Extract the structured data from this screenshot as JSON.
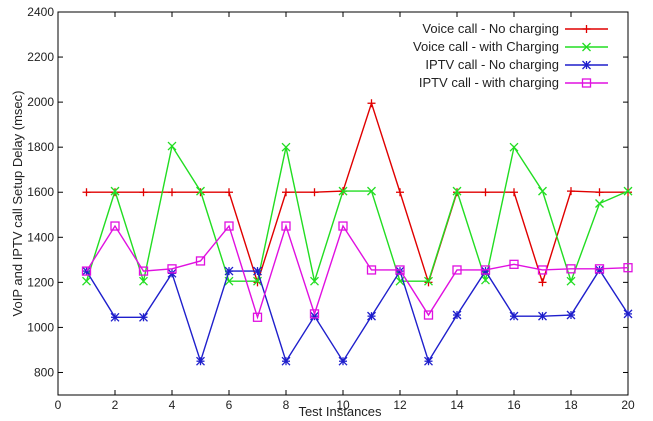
{
  "chart_data": {
    "type": "line",
    "xlabel": "Test Instances",
    "ylabel": "VoIP and IPTV call Setup Delay (msec)",
    "xlim": [
      0,
      20
    ],
    "ylim": [
      700,
      2400
    ],
    "x_ticks": [
      0,
      2,
      4,
      6,
      8,
      10,
      12,
      14,
      16,
      18,
      20
    ],
    "y_ticks": [
      800,
      1000,
      1200,
      1400,
      1600,
      1800,
      2000,
      2200,
      2400
    ],
    "legend_position": "top-right",
    "grid": false,
    "x": [
      1,
      2,
      3,
      4,
      5,
      6,
      7,
      8,
      9,
      10,
      11,
      12,
      13,
      14,
      15,
      16,
      17,
      18,
      19,
      20
    ],
    "series": [
      {
        "name": "Voice call - No charging",
        "color": "#e00000",
        "marker": "plus",
        "values": [
          1600,
          1600,
          1600,
          1600,
          1600,
          1600,
          1200,
          1600,
          1600,
          1605,
          1995,
          1600,
          1200,
          1600,
          1600,
          1600,
          1200,
          1605,
          1600,
          1600
        ]
      },
      {
        "name": "Voice call - with Charging",
        "color": "#22dd22",
        "marker": "cross",
        "values": [
          1205,
          1605,
          1205,
          1805,
          1605,
          1205,
          1205,
          1800,
          1205,
          1605,
          1605,
          1205,
          1205,
          1605,
          1210,
          1800,
          1605,
          1205,
          1550,
          1605
        ]
      },
      {
        "name": "IPTV call - No charging",
        "color": "#1f1fcc",
        "marker": "star",
        "values": [
          1250,
          1045,
          1045,
          1240,
          850,
          1250,
          1250,
          850,
          1050,
          850,
          1050,
          1250,
          850,
          1055,
          1250,
          1050,
          1050,
          1055,
          1255,
          1060
        ]
      },
      {
        "name": "IPTV call - with charging",
        "color": "#e010e0",
        "marker": "square",
        "values": [
          1250,
          1450,
          1250,
          1260,
          1295,
          1450,
          1045,
          1450,
          1060,
          1450,
          1255,
          1255,
          1055,
          1255,
          1255,
          1280,
          1255,
          1260,
          1260,
          1265
        ]
      }
    ]
  }
}
